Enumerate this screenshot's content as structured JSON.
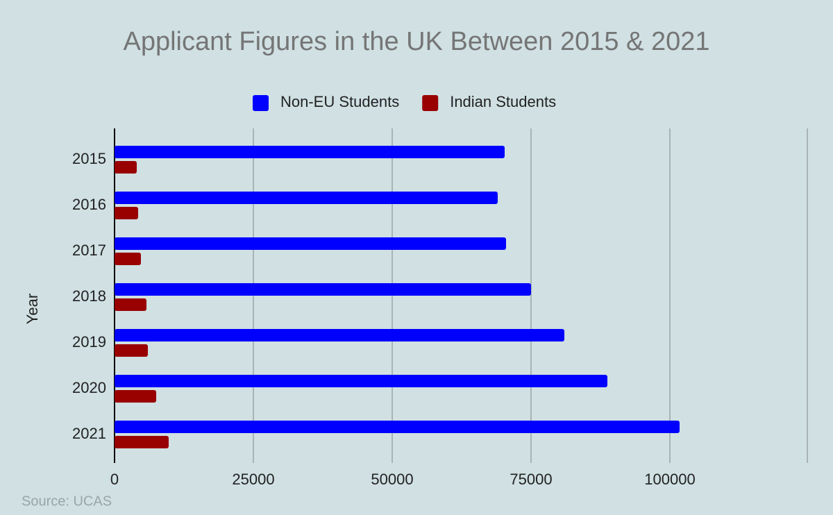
{
  "chart_data": {
    "type": "bar",
    "orientation": "horizontal",
    "title": "Applicant Figures in the UK Between 2015 & 2021",
    "y_label": "Year",
    "source": "Source: UCAS",
    "categories": [
      "2015",
      "2016",
      "2017",
      "2018",
      "2019",
      "2020",
      "2021"
    ],
    "series": [
      {
        "name": "Non-EU Students",
        "color": "#0000ff",
        "values": [
          70250,
          69000,
          70500,
          75000,
          81000,
          88750,
          101750
        ]
      },
      {
        "name": "Indian Students",
        "color": "#990000",
        "values": [
          4000,
          4250,
          4750,
          5750,
          6000,
          7500,
          9750
        ]
      }
    ],
    "xlim": [
      0,
      125000
    ],
    "xticks": [
      0,
      25000,
      50000,
      75000,
      100000
    ],
    "grid": true,
    "legend": "top"
  }
}
